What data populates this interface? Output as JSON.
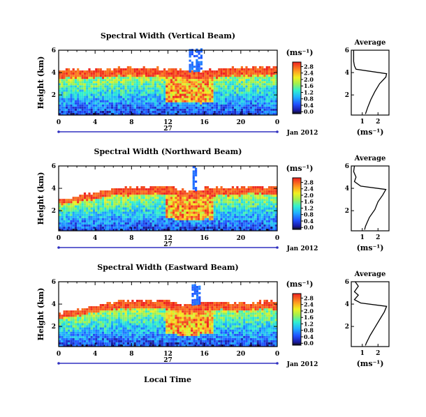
{
  "figure": {
    "x_axis_label": "Local Time",
    "date_label": "Jan 2012",
    "day_label": "27",
    "height_label": "Height (km)",
    "units_label": "(ms⁻¹)",
    "average_title": "Average",
    "average_xlabel": "(ms⁻¹)"
  },
  "chart_data": [
    {
      "type": "heatmap",
      "title": "Spectral Width (Vertical Beam)",
      "xlabel": "Local Time",
      "ylabel": "Height (km)",
      "x_ticks": [
        "0",
        "4",
        "8",
        "12",
        "16",
        "20",
        "0"
      ],
      "y_ticks": [
        "2",
        "4",
        "6"
      ],
      "xlim": [
        0,
        24
      ],
      "ylim": [
        0.2,
        6.0
      ],
      "colorbar": {
        "label": "(ms⁻¹)",
        "ticks": [
          "0.0",
          "0.4",
          "0.8",
          "1.2",
          "1.6",
          "2.0",
          "2.4",
          "2.8"
        ],
        "range": [
          0,
          3.0
        ]
      },
      "top_profile": [
        [
          0,
          4.1
        ],
        [
          2,
          4.15
        ],
        [
          4,
          4.2
        ],
        [
          6,
          4.3
        ],
        [
          8,
          4.35
        ],
        [
          10,
          4.3
        ],
        [
          12,
          4.25
        ],
        [
          14,
          4.0
        ],
        [
          16,
          4.1
        ],
        [
          18,
          4.25
        ],
        [
          20,
          4.3
        ],
        [
          22,
          4.35
        ],
        [
          24,
          4.4
        ]
      ],
      "plume": {
        "x_range": [
          14.3,
          15.8
        ],
        "top": 6.0
      },
      "average_profile": {
        "title": "Average",
        "xlabel": "(ms⁻¹)",
        "x_ticks": [
          "1",
          "2"
        ],
        "y_ticks": [
          "2",
          "4",
          "6"
        ],
        "xlim": [
          0.3,
          2.7
        ],
        "points": [
          [
            0.45,
            6.0
          ],
          [
            0.45,
            5.0
          ],
          [
            0.5,
            4.6
          ],
          [
            0.6,
            4.3
          ],
          [
            2.55,
            3.9
          ],
          [
            2.5,
            3.6
          ],
          [
            2.1,
            3.0
          ],
          [
            1.8,
            2.3
          ],
          [
            1.55,
            1.6
          ],
          [
            1.35,
            0.9
          ],
          [
            1.2,
            0.3
          ]
        ]
      }
    },
    {
      "type": "heatmap",
      "title": "Spectral Width (Northward Beam)",
      "xlabel": "Local Time",
      "ylabel": "Height (km)",
      "x_ticks": [
        "0",
        "4",
        "8",
        "12",
        "16",
        "20",
        "0"
      ],
      "y_ticks": [
        "2",
        "4",
        "6"
      ],
      "xlim": [
        0,
        24
      ],
      "ylim": [
        0.2,
        6.0
      ],
      "colorbar": {
        "label": "(ms⁻¹)",
        "ticks": [
          "0.0",
          "0.4",
          "0.8",
          "1.2",
          "1.6",
          "2.0",
          "2.4",
          "2.8"
        ],
        "range": [
          0,
          3.0
        ]
      },
      "top_profile": [
        [
          0,
          3.0
        ],
        [
          2,
          3.2
        ],
        [
          4,
          3.6
        ],
        [
          6,
          3.9
        ],
        [
          8,
          4.0
        ],
        [
          10,
          4.1
        ],
        [
          12,
          4.1
        ],
        [
          14,
          3.6
        ],
        [
          16,
          3.9
        ],
        [
          18,
          4.0
        ],
        [
          20,
          4.0
        ],
        [
          22,
          4.1
        ],
        [
          24,
          4.0
        ]
      ],
      "plume": {
        "x_range": [
          14.7,
          15.2
        ],
        "top": 5.8
      },
      "average_profile": {
        "title": "Average",
        "xlabel": "(ms⁻¹)",
        "x_ticks": [
          "1",
          "2"
        ],
        "y_ticks": [
          "2",
          "4",
          "6"
        ],
        "xlim": [
          0.3,
          2.7
        ],
        "points": [
          [
            0.5,
            6.0
          ],
          [
            0.45,
            5.5
          ],
          [
            0.6,
            5.0
          ],
          [
            0.5,
            4.6
          ],
          [
            0.9,
            4.2
          ],
          [
            2.5,
            3.9
          ],
          [
            2.3,
            3.4
          ],
          [
            2.0,
            2.8
          ],
          [
            1.8,
            2.1
          ],
          [
            1.45,
            1.4
          ],
          [
            1.2,
            0.6
          ],
          [
            1.15,
            0.3
          ]
        ]
      }
    },
    {
      "type": "heatmap",
      "title": "Spectral Width (Eastward Beam)",
      "xlabel": "Local Time",
      "ylabel": "Height (km)",
      "x_ticks": [
        "0",
        "4",
        "8",
        "12",
        "16",
        "20",
        "0"
      ],
      "y_ticks": [
        "2",
        "4",
        "6"
      ],
      "xlim": [
        0,
        24
      ],
      "ylim": [
        0.2,
        6.0
      ],
      "colorbar": {
        "label": "(ms⁻¹)",
        "ticks": [
          "0.0",
          "0.4",
          "0.8",
          "1.2",
          "1.6",
          "2.0",
          "2.4",
          "2.8"
        ],
        "range": [
          0,
          3.0
        ]
      },
      "top_profile": [
        [
          0,
          3.1
        ],
        [
          2,
          3.4
        ],
        [
          4,
          3.8
        ],
        [
          6,
          4.1
        ],
        [
          8,
          4.2
        ],
        [
          10,
          4.3
        ],
        [
          12,
          4.2
        ],
        [
          14,
          3.8
        ],
        [
          16,
          4.0
        ],
        [
          18,
          4.1
        ],
        [
          20,
          4.0
        ],
        [
          22,
          4.1
        ],
        [
          24,
          4.2
        ]
      ],
      "plume": {
        "x_range": [
          14.6,
          15.4
        ],
        "top": 5.6
      },
      "average_profile": {
        "title": "Average",
        "xlabel": "(ms⁻¹)",
        "x_ticks": [
          "1",
          "2"
        ],
        "y_ticks": [
          "2",
          "4",
          "6"
        ],
        "xlim": [
          0.3,
          2.7
        ],
        "points": [
          [
            0.55,
            6.0
          ],
          [
            0.75,
            5.6
          ],
          [
            0.5,
            5.1
          ],
          [
            0.75,
            4.8
          ],
          [
            0.5,
            4.4
          ],
          [
            0.9,
            4.1
          ],
          [
            2.55,
            3.8
          ],
          [
            2.4,
            3.3
          ],
          [
            2.1,
            2.6
          ],
          [
            1.8,
            1.9
          ],
          [
            1.5,
            1.2
          ],
          [
            1.25,
            0.5
          ],
          [
            1.2,
            0.3
          ]
        ]
      }
    }
  ]
}
